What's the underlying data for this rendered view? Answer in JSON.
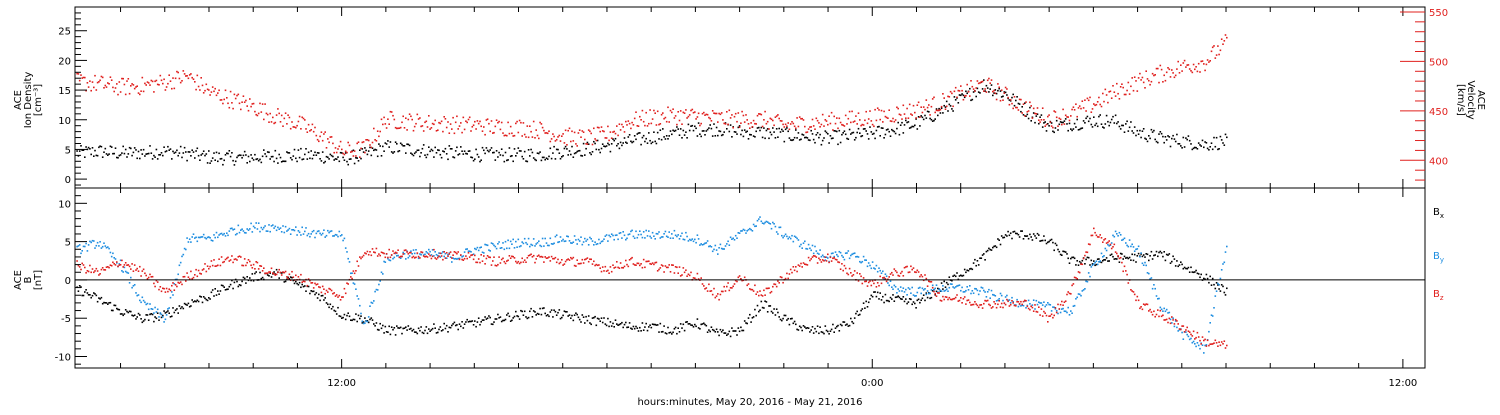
{
  "chart_data": [
    {
      "type": "scatter",
      "title": "",
      "xlabel": "hours:minutes, May 20, 2016 - May 21, 2016",
      "x_unit": "hours since 00:00 May 20, 2016",
      "xlim": [
        5.97,
        36.5
      ],
      "x_ticks": [
        {
          "hours": 12,
          "label": "12:00"
        },
        {
          "hours": 24,
          "label": "0:00"
        },
        {
          "hours": 36,
          "label": "12:00"
        }
      ],
      "ylabel_left": [
        "ACE",
        "Ion Density",
        "[cm⁻³]"
      ],
      "ylabel_right": [
        "ACE",
        "Velocity",
        "[km/s]"
      ],
      "ylim_left": [
        -1.5,
        29
      ],
      "ylim_right": [
        372,
        555
      ],
      "y_ticks_left": [
        0,
        5,
        10,
        15,
        20,
        25
      ],
      "y_ticks_right": [
        400,
        450,
        500,
        550
      ],
      "left_axis_color": "#000000",
      "right_axis_color": "#e0201e",
      "series": [
        {
          "color": "#000000",
          "axis": "left",
          "x": [
            6.0,
            6.5,
            7.0,
            7.5,
            8.0,
            8.5,
            9.0,
            9.5,
            10.0,
            10.5,
            11.0,
            11.5,
            12.0,
            12.5,
            13.0,
            13.5,
            14.0,
            14.5,
            15.0,
            15.5,
            16.0,
            16.5,
            17.0,
            17.5,
            18.0,
            18.5,
            19.0,
            19.5,
            20.0,
            20.5,
            21.0,
            21.5,
            22.0,
            22.5,
            23.0,
            23.5,
            24.0,
            24.5,
            25.0,
            25.5,
            26.0,
            26.5,
            27.0,
            27.5,
            28.0,
            28.5,
            29.0,
            29.5,
            30.0,
            30.5,
            31.0,
            31.5,
            32.0
          ],
          "y": [
            4.5,
            4.8,
            4.5,
            4.6,
            4.8,
            4.4,
            3.8,
            3.7,
            3.8,
            4.0,
            4.1,
            4.1,
            3.5,
            4.2,
            5.5,
            5.2,
            4.8,
            4.5,
            4.3,
            4.2,
            4.2,
            4.3,
            4.8,
            5.2,
            5.8,
            6.5,
            7.2,
            7.8,
            8.5,
            8.6,
            8.1,
            8.0,
            7.6,
            7.3,
            7.0,
            7.4,
            7.8,
            8.5,
            9.5,
            11.5,
            13.5,
            16.0,
            14.5,
            11.5,
            9.0,
            9.5,
            10.0,
            9.8,
            8.0,
            7.0,
            6.5,
            6.0,
            6.5
          ]
        },
        {
          "color": "#e0201e",
          "axis": "right",
          "x": [
            6.0,
            6.5,
            7.0,
            7.5,
            8.0,
            8.5,
            9.0,
            9.5,
            10.0,
            10.5,
            11.0,
            11.5,
            12.0,
            12.5,
            13.0,
            13.5,
            14.0,
            14.5,
            15.0,
            15.5,
            16.0,
            16.5,
            17.0,
            17.5,
            18.0,
            18.5,
            19.0,
            19.5,
            20.0,
            20.5,
            21.0,
            21.5,
            22.0,
            22.5,
            23.0,
            23.5,
            24.0,
            24.5,
            25.0,
            25.5,
            26.0,
            26.5,
            27.0,
            27.5,
            28.0,
            28.5,
            29.0,
            29.5,
            30.0,
            30.5,
            31.0,
            31.5,
            32.0
          ],
          "y": [
            480,
            478,
            475,
            476,
            480,
            486,
            470,
            462,
            455,
            445,
            438,
            426,
            410,
            412,
            442,
            440,
            438,
            437,
            436,
            434,
            434,
            431,
            425,
            423,
            427,
            440,
            444,
            446,
            445,
            443,
            442,
            442,
            436,
            438,
            440,
            442,
            444,
            448,
            452,
            458,
            468,
            478,
            466,
            452,
            442,
            448,
            458,
            470,
            480,
            488,
            495,
            500,
            520
          ]
        }
      ]
    },
    {
      "type": "scatter",
      "title": "",
      "xlabel": "hours:minutes, May 20, 2016 - May 21, 2016",
      "x_unit": "hours since 00:00 May 20, 2016",
      "xlim": [
        5.97,
        36.5
      ],
      "x_ticks": [
        {
          "hours": 12,
          "label": "12:00"
        },
        {
          "hours": 24,
          "label": "0:00"
        },
        {
          "hours": 36,
          "label": "12:00"
        }
      ],
      "ylabel_left": [
        "ACE",
        "B",
        "[nT]"
      ],
      "ylim": [
        -11.5,
        12
      ],
      "y_ticks": [
        -10,
        -5,
        0,
        5,
        10
      ],
      "zero_line": true,
      "legend_position": "right",
      "series": [
        {
          "name": "Bx",
          "legend_main": "B",
          "legend_sub": "x",
          "color": "#000000",
          "x": [
            6.0,
            6.5,
            7.0,
            7.5,
            8.0,
            8.5,
            9.0,
            9.5,
            10.0,
            10.5,
            11.0,
            11.5,
            12.0,
            12.5,
            13.0,
            13.5,
            14.0,
            14.5,
            15.0,
            15.5,
            16.0,
            16.5,
            17.0,
            17.5,
            18.0,
            18.5,
            19.0,
            19.5,
            20.0,
            20.5,
            21.0,
            21.5,
            22.0,
            22.5,
            23.0,
            23.5,
            24.0,
            24.5,
            25.0,
            25.5,
            26.0,
            26.5,
            27.0,
            27.5,
            28.0,
            28.5,
            29.0,
            29.5,
            30.0,
            30.5,
            31.0,
            31.5,
            32.0
          ],
          "y": [
            -1.0,
            -2.5,
            -4.0,
            -5.0,
            -4.5,
            -3.0,
            -2.0,
            -0.5,
            0.5,
            1.0,
            -0.5,
            -2.0,
            -4.5,
            -5.0,
            -6.5,
            -6.5,
            -6.3,
            -6.0,
            -5.5,
            -5.0,
            -4.5,
            -4.0,
            -4.5,
            -5.0,
            -5.5,
            -6.0,
            -6.0,
            -6.5,
            -5.5,
            -7.0,
            -6.5,
            -3.0,
            -5.0,
            -6.5,
            -6.5,
            -5.5,
            -2.0,
            -2.5,
            -3.0,
            -1.0,
            1.0,
            3.0,
            6.0,
            6.0,
            5.0,
            2.5,
            2.5,
            3.0,
            3.0,
            3.5,
            2.0,
            0.5,
            -1.5
          ]
        },
        {
          "name": "By",
          "legend_main": "B",
          "legend_sub": "y",
          "color": "#1f8ee0",
          "x": [
            6.0,
            6.5,
            7.0,
            7.5,
            8.0,
            8.5,
            9.0,
            9.5,
            10.0,
            10.5,
            11.0,
            11.5,
            12.0,
            12.5,
            13.0,
            13.5,
            14.0,
            14.5,
            15.0,
            15.5,
            16.0,
            16.5,
            17.0,
            17.5,
            18.0,
            18.5,
            19.0,
            19.5,
            20.0,
            20.5,
            21.0,
            21.5,
            22.0,
            22.5,
            23.0,
            23.5,
            24.0,
            24.5,
            25.0,
            25.5,
            26.0,
            26.5,
            27.0,
            27.5,
            28.0,
            28.5,
            29.0,
            29.5,
            30.0,
            30.5,
            31.0,
            31.5,
            32.0
          ],
          "y": [
            4.0,
            5.0,
            2.0,
            -3.0,
            -5.0,
            5.5,
            5.5,
            6.5,
            7.0,
            7.0,
            6.5,
            6.0,
            6.0,
            -6.0,
            3.0,
            3.5,
            3.5,
            3.0,
            4.0,
            4.5,
            5.0,
            5.0,
            5.5,
            5.0,
            5.5,
            6.0,
            6.0,
            6.0,
            5.5,
            4.0,
            6.0,
            8.0,
            6.0,
            4.5,
            3.0,
            3.5,
            2.0,
            -1.0,
            -1.5,
            -1.0,
            -1.0,
            -1.5,
            -2.5,
            -3.0,
            -3.5,
            -4.0,
            2.0,
            6.0,
            4.0,
            -3.0,
            -7.0,
            -9.0,
            4.5
          ]
        },
        {
          "name": "Bz",
          "legend_main": "B",
          "legend_sub": "z",
          "color": "#e0201e",
          "x": [
            6.0,
            6.5,
            7.0,
            7.5,
            8.0,
            8.5,
            9.0,
            9.5,
            10.0,
            10.5,
            11.0,
            11.5,
            12.0,
            12.5,
            13.0,
            13.5,
            14.0,
            14.5,
            15.0,
            15.5,
            16.0,
            16.5,
            17.0,
            17.5,
            18.0,
            18.5,
            19.0,
            19.5,
            20.0,
            20.5,
            21.0,
            21.5,
            22.0,
            22.5,
            23.0,
            23.5,
            24.0,
            24.5,
            25.0,
            25.5,
            26.0,
            26.5,
            27.0,
            27.5,
            28.0,
            28.5,
            29.0,
            29.5,
            30.0,
            30.5,
            31.0,
            31.5,
            32.0
          ],
          "y": [
            2.0,
            1.0,
            2.5,
            1.0,
            -1.5,
            0.5,
            2.0,
            3.0,
            2.0,
            1.0,
            0.5,
            -1.0,
            -2.0,
            4.0,
            3.5,
            3.5,
            3.5,
            3.2,
            3.0,
            2.5,
            2.8,
            3.0,
            2.5,
            2.5,
            1.5,
            2.5,
            2.0,
            1.5,
            0.5,
            -2.0,
            0.5,
            -2.0,
            0.5,
            2.5,
            3.0,
            1.0,
            -0.5,
            1.0,
            1.5,
            -2.0,
            -2.5,
            -3.0,
            -3.0,
            -3.0,
            -5.0,
            -1.0,
            6.5,
            4.0,
            -3.0,
            -4.5,
            -6.0,
            -8.0,
            -8.5
          ]
        }
      ]
    }
  ]
}
